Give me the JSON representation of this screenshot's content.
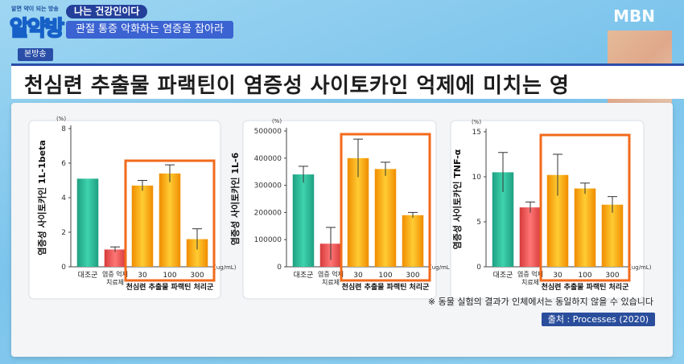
{
  "program": {
    "logo_small": "알면 약이 되는 방송",
    "logo_big": "알약방",
    "title": "나는 건강인이다",
    "subtitle": "관절 통증 악화하는 염증을 잡아라"
  },
  "channel": "MBN",
  "broadcast_badge": "본방송",
  "headline": "천심련 추출물 파랙틴이 염증성 사이토카인 억제에 미치는 영",
  "colors": {
    "control": "#2fbf9a",
    "inflamed": "#ef5a5a",
    "treated": "#f7a614",
    "highlight_box": "#f26a1b"
  },
  "chart_data": [
    {
      "type": "bar",
      "ylabel": "염증성 사이토카인 1L-1beta",
      "unit": "(%)",
      "ylim": [
        0,
        8
      ],
      "ticks": [
        0,
        2,
        4,
        6,
        8
      ],
      "tick_labels": [
        "0",
        "2",
        "4",
        "6",
        "8"
      ],
      "categories": [
        "대조군",
        "염증 억제 치료제",
        "30",
        "100",
        "300"
      ],
      "values": [
        5.1,
        1.0,
        4.7,
        5.4,
        1.6
      ],
      "errors": [
        0.0,
        0.15,
        0.3,
        0.5,
        0.6
      ],
      "x_unit": "(ug/mL)",
      "group_label": "천심련 추출물 파랙틴 처리군"
    },
    {
      "type": "bar",
      "ylabel": "염증성 사이토카인 1L-6",
      "unit": "(%)",
      "ylim": [
        0,
        500000
      ],
      "ticks": [
        0,
        100000,
        200000,
        300000,
        400000,
        500000
      ],
      "tick_labels": [
        "0",
        "100000",
        "200000",
        "300000",
        "400000",
        "500000"
      ],
      "categories": [
        "대조군",
        "염증 억제 치료제",
        "30",
        "100",
        "300"
      ],
      "values": [
        340000,
        85000,
        400000,
        360000,
        190000
      ],
      "errors": [
        30000,
        60000,
        70000,
        25000,
        10000
      ],
      "x_unit": "(ug/mL)",
      "group_label": "천심련 추출물 파랙틴 처리군"
    },
    {
      "type": "bar",
      "ylabel": "염증성 사이토카인 TNF-α",
      "unit": "(%)",
      "ylim": [
        0,
        15
      ],
      "ticks": [
        0,
        5,
        10,
        15
      ],
      "tick_labels": [
        "0",
        "5",
        "10",
        "15"
      ],
      "categories": [
        "대조군",
        "염증 억제 치료제",
        "30",
        "100",
        "300"
      ],
      "values": [
        10.5,
        6.6,
        10.2,
        8.7,
        6.9
      ],
      "errors": [
        2.2,
        0.6,
        2.3,
        0.6,
        0.9
      ],
      "x_unit": "(ug/mL)",
      "group_label": "천심련 추출물 파랙틴 처리군"
    }
  ],
  "footnote": "※ 동물 실험의 결과가 인체에서는 동일하지 않을 수 있습니다",
  "source": "출처 : Processes (2020)"
}
